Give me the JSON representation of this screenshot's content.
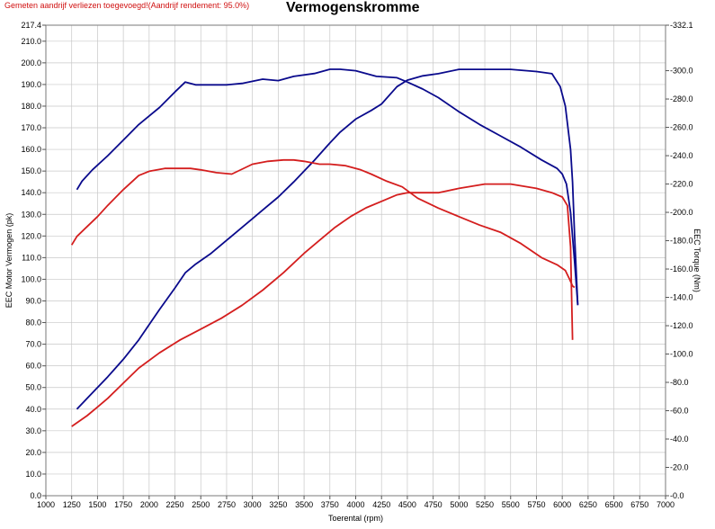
{
  "header": {
    "note": "Gemeten aandrijf verliezen toegevoegd!(Aandrijf rendement: 95.0%)",
    "title": "Vermogenskromme"
  },
  "colors": {
    "blue": "#0a0a8c",
    "red": "#d41e1e",
    "grid": "#c8c8c8",
    "note": "#d01010"
  },
  "chart_data": {
    "type": "line",
    "title": "Vermogenskromme",
    "xlabel": "Toerental (rpm)",
    "ylabel": "EEC Motor Vermogen (pk)",
    "y2label": "EEC Torque (Nm)",
    "xlim": [
      1000,
      7000
    ],
    "ylim": [
      0,
      217.4
    ],
    "y2lim": [
      0,
      332.1
    ],
    "grid": true,
    "x_ticks": [
      "1000",
      "1250",
      "1500",
      "1750",
      "2000",
      "2250",
      "2500",
      "2750",
      "3000",
      "3250",
      "3500",
      "3750",
      "4000",
      "4250",
      "4500",
      "4750",
      "5000",
      "5250",
      "5500",
      "5750",
      "6000",
      "6250",
      "6500",
      "6750",
      "7000"
    ],
    "y_ticks": [
      "0.0",
      "10.0",
      "20.0",
      "30.0",
      "40.0",
      "50.0",
      "60.0",
      "70.0",
      "80.0",
      "90.0",
      "100.0",
      "110.0",
      "120.0",
      "130.0",
      "140.0",
      "150.0",
      "160.0",
      "170.0",
      "180.0",
      "190.0",
      "200.0",
      "210.0",
      "217.4"
    ],
    "y2_ticks": [
      "0.0",
      "20.0",
      "40.0",
      "60.0",
      "80.0",
      "100.0",
      "120.0",
      "140.0",
      "160.0",
      "180.0",
      "200.0",
      "220.0",
      "240.0",
      "260.0",
      "280.0",
      "300.0",
      "332.1"
    ],
    "series": [
      {
        "axis": "left",
        "color": "#0a0a8c",
        "x": [
          1300,
          1400,
          1500,
          1600,
          1750,
          1900,
          2000,
          2100,
          2250,
          2350,
          2450,
          2600,
          2750,
          2900,
          3000,
          3100,
          3250,
          3400,
          3600,
          3750,
          3850,
          4000,
          4150,
          4250,
          4400,
          4500,
          4650,
          4800,
          5000,
          5250,
          5500,
          5750,
          5900,
          5980,
          6030,
          6080,
          6100,
          6120,
          6150
        ],
        "y": [
          40,
          45,
          50,
          55,
          63,
          72,
          79,
          86,
          96,
          103,
          107,
          112,
          118,
          124,
          128,
          132,
          138,
          145,
          155,
          163,
          168,
          174,
          178,
          181,
          189,
          192,
          194,
          195,
          197,
          197,
          197,
          196,
          195,
          189,
          180,
          160,
          145,
          120,
          88
        ]
      },
      {
        "axis": "left",
        "color": "#d41e1e",
        "x": [
          1250,
          1400,
          1500,
          1600,
          1750,
          1900,
          2100,
          2300,
          2500,
          2700,
          2900,
          3100,
          3300,
          3500,
          3650,
          3800,
          3950,
          4100,
          4250,
          4400,
          4500,
          4650,
          4800,
          5000,
          5250,
          5500,
          5750,
          5900,
          6000,
          6050,
          6080,
          6100
        ],
        "y": [
          32,
          37,
          41,
          45,
          52,
          59,
          66,
          72,
          77,
          82,
          88,
          95,
          103,
          112,
          118,
          124,
          129,
          133,
          136,
          139,
          140,
          140,
          140,
          142,
          144,
          144,
          142,
          140,
          138,
          134,
          115,
          72
        ]
      },
      {
        "axis": "right",
        "color": "#0a0a8c",
        "x": [
          1300,
          1350,
          1450,
          1600,
          1750,
          1900,
          2100,
          2250,
          2350,
          2450,
          2600,
          2750,
          2900,
          3100,
          3250,
          3400,
          3600,
          3750,
          3850,
          4000,
          4200,
          4400,
          4500,
          4650,
          4800,
          5000,
          5200,
          5400,
          5600,
          5800,
          5950,
          6000,
          6040,
          6080,
          6120,
          6150
        ],
        "y": [
          216,
          222,
          230,
          240,
          251,
          262,
          274,
          285,
          292,
          290,
          290,
          290,
          291,
          294,
          293,
          296,
          298,
          301,
          301,
          300,
          296,
          295,
          292,
          287,
          281,
          271,
          262,
          254,
          246,
          237,
          231,
          227,
          220,
          200,
          165,
          135
        ]
      },
      {
        "axis": "right",
        "color": "#d41e1e",
        "x": [
          1250,
          1300,
          1400,
          1500,
          1600,
          1750,
          1900,
          2000,
          2150,
          2250,
          2400,
          2500,
          2650,
          2800,
          3000,
          3150,
          3300,
          3400,
          3500,
          3650,
          3750,
          3900,
          4050,
          4150,
          4300,
          4450,
          4600,
          4800,
          5000,
          5200,
          5400,
          5600,
          5800,
          5950,
          6030,
          6070,
          6100,
          6120
        ],
        "y": [
          177,
          183,
          190,
          197,
          205,
          216,
          226,
          229,
          231,
          231,
          231,
          230,
          228,
          227,
          234,
          236,
          237,
          237,
          236,
          234,
          234,
          233,
          230,
          227,
          222,
          218,
          210,
          203,
          197,
          191,
          186,
          178,
          168,
          163,
          159,
          153,
          148,
          147
        ]
      }
    ]
  }
}
